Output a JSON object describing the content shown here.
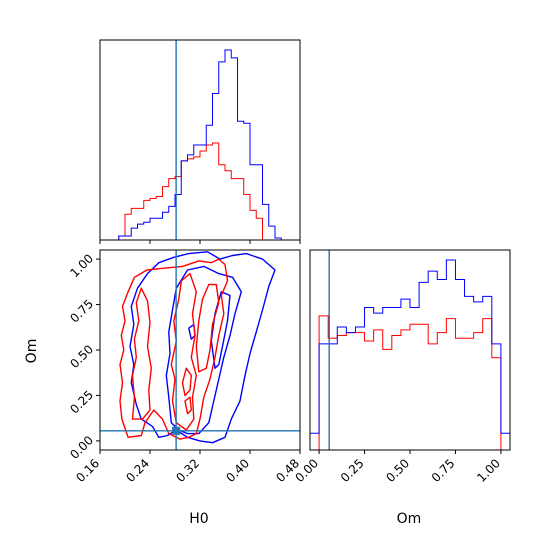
{
  "chart_data": {
    "type": "corner",
    "parameters": [
      "H0",
      "Om"
    ],
    "truths": {
      "H0": 0.2818,
      "Om": 0.0556
    },
    "truth_color": "#1f77b4",
    "series_colors": {
      "red": "#ff0000",
      "blue": "#0000ff"
    },
    "axes": {
      "H0": {
        "xlabel": "H0",
        "range": [
          0.16,
          0.48
        ],
        "ticks": [
          0.16,
          0.24,
          0.32,
          0.4,
          0.48
        ],
        "tick_labels": [
          "0.16",
          "0.24",
          "0.32",
          "0.40",
          "0.48"
        ]
      },
      "Om": {
        "xlabel": "Om",
        "ylabel": "Om",
        "range": [
          -0.05,
          1.05
        ],
        "ticks": [
          0.0,
          0.25,
          0.5,
          0.75,
          1.0
        ],
        "tick_labels": [
          "0.00",
          "0.25",
          "0.50",
          "0.75",
          "1.00"
        ]
      }
    },
    "hist_H0": {
      "bin_edges": [
        0.16,
        0.17,
        0.18,
        0.19,
        0.2,
        0.21,
        0.22,
        0.23,
        0.24,
        0.25,
        0.26,
        0.27,
        0.28,
        0.29,
        0.3,
        0.31,
        0.32,
        0.33,
        0.34,
        0.35,
        0.36,
        0.37,
        0.38,
        0.39,
        0.4,
        0.41,
        0.42,
        0.43,
        0.44,
        0.45,
        0.46,
        0.47,
        0.48
      ],
      "red": [
        0,
        0,
        0,
        0.02,
        0.13,
        0.16,
        0.16,
        0.2,
        0.21,
        0.22,
        0.27,
        0.31,
        0.32,
        0.4,
        0.41,
        0.42,
        0.45,
        0.48,
        0.49,
        0.38,
        0.35,
        0.31,
        0.31,
        0.23,
        0.15,
        0.11,
        0,
        0,
        0,
        0,
        0,
        0
      ],
      "blue": [
        0,
        0,
        0,
        0.02,
        0.02,
        0.06,
        0.08,
        0.09,
        0.11,
        0.11,
        0.14,
        0.17,
        0.23,
        0.4,
        0.43,
        0.48,
        0.48,
        0.58,
        0.74,
        0.9,
        0.96,
        0.92,
        0.6,
        0.59,
        0.38,
        0.38,
        0.18,
        0.07,
        0.01,
        0,
        0,
        0
      ]
    },
    "hist_Om": {
      "bin_edges": [
        -0.05,
        0,
        0.05,
        0.1,
        0.15,
        0.2,
        0.25,
        0.3,
        0.35,
        0.4,
        0.45,
        0.5,
        0.55,
        0.6,
        0.65,
        0.7,
        0.75,
        0.8,
        0.85,
        0.9,
        0.95,
        1.0,
        1.05
      ],
      "red": [
        0,
        0.48,
        0.4,
        0.41,
        0.42,
        0.42,
        0.39,
        0.43,
        0.36,
        0.41,
        0.43,
        0.45,
        0.45,
        0.38,
        0.42,
        0.47,
        0.4,
        0.4,
        0.42,
        0.47,
        0.33,
        0
      ],
      "blue": [
        0.06,
        0.38,
        0.38,
        0.44,
        0.42,
        0.44,
        0.51,
        0.49,
        0.51,
        0.51,
        0.54,
        0.51,
        0.6,
        0.64,
        0.61,
        0.68,
        0.61,
        0.55,
        0.53,
        0.55,
        0.38,
        0.06
      ]
    },
    "contours": {
      "red": [
        [
          [
            0.205,
            0.02
          ],
          [
            0.195,
            0.12
          ],
          [
            0.192,
            0.22
          ],
          [
            0.196,
            0.32
          ],
          [
            0.192,
            0.42
          ],
          [
            0.198,
            0.5
          ],
          [
            0.194,
            0.58
          ],
          [
            0.2,
            0.66
          ],
          [
            0.196,
            0.74
          ],
          [
            0.205,
            0.82
          ],
          [
            0.215,
            0.9
          ],
          [
            0.235,
            0.94
          ],
          [
            0.262,
            0.95
          ],
          [
            0.292,
            0.96
          ],
          [
            0.318,
            0.99
          ],
          [
            0.338,
            0.98
          ],
          [
            0.35,
            1.0
          ],
          [
            0.36,
            0.97
          ],
          [
            0.364,
            0.88
          ],
          [
            0.354,
            0.8
          ],
          [
            0.358,
            0.7
          ],
          [
            0.35,
            0.58
          ],
          [
            0.344,
            0.46
          ],
          [
            0.336,
            0.34
          ],
          [
            0.326,
            0.24
          ],
          [
            0.32,
            0.12
          ],
          [
            0.314,
            0.04
          ],
          [
            0.302,
            0.02
          ],
          [
            0.288,
            0.01
          ],
          [
            0.27,
            0.04
          ],
          [
            0.26,
            0.12
          ],
          [
            0.246,
            0.17
          ],
          [
            0.232,
            0.1
          ],
          [
            0.226,
            0.03
          ],
          [
            0.205,
            0.02
          ]
        ],
        [
          [
            0.212,
            0.12
          ],
          [
            0.215,
            0.24
          ],
          [
            0.212,
            0.36
          ],
          [
            0.218,
            0.46
          ],
          [
            0.215,
            0.56
          ],
          [
            0.222,
            0.66
          ],
          [
            0.218,
            0.76
          ],
          [
            0.226,
            0.84
          ],
          [
            0.236,
            0.77
          ],
          [
            0.24,
            0.65
          ],
          [
            0.236,
            0.52
          ],
          [
            0.242,
            0.4
          ],
          [
            0.238,
            0.28
          ],
          [
            0.24,
            0.17
          ],
          [
            0.228,
            0.12
          ],
          [
            0.212,
            0.12
          ]
        ],
        [
          [
            0.282,
            0.1
          ],
          [
            0.276,
            0.22
          ],
          [
            0.28,
            0.34
          ],
          [
            0.274,
            0.42
          ],
          [
            0.282,
            0.55
          ],
          [
            0.278,
            0.66
          ],
          [
            0.286,
            0.78
          ],
          [
            0.29,
            0.88
          ],
          [
            0.304,
            0.92
          ],
          [
            0.314,
            0.82
          ],
          [
            0.308,
            0.7
          ],
          [
            0.312,
            0.58
          ],
          [
            0.306,
            0.46
          ],
          [
            0.314,
            0.36
          ],
          [
            0.308,
            0.24
          ],
          [
            0.31,
            0.12
          ],
          [
            0.298,
            0.06
          ],
          [
            0.282,
            0.1
          ]
        ],
        [
          [
            0.318,
            0.38
          ],
          [
            0.314,
            0.52
          ],
          [
            0.318,
            0.66
          ],
          [
            0.324,
            0.78
          ],
          [
            0.334,
            0.86
          ],
          [
            0.346,
            0.86
          ],
          [
            0.35,
            0.76
          ],
          [
            0.34,
            0.64
          ],
          [
            0.336,
            0.5
          ],
          [
            0.33,
            0.4
          ],
          [
            0.318,
            0.38
          ]
        ],
        [
          [
            0.296,
            0.25
          ],
          [
            0.292,
            0.32
          ],
          [
            0.298,
            0.4
          ],
          [
            0.306,
            0.36
          ],
          [
            0.304,
            0.28
          ],
          [
            0.296,
            0.25
          ]
        ],
        [
          [
            0.3,
            0.15
          ],
          [
            0.296,
            0.22
          ],
          [
            0.304,
            0.24
          ],
          [
            0.306,
            0.17
          ],
          [
            0.3,
            0.15
          ]
        ]
      ],
      "blue": [
        [
          [
            0.254,
            0.02
          ],
          [
            0.244,
            0.08
          ],
          [
            0.226,
            0.12
          ],
          [
            0.218,
            0.2
          ],
          [
            0.21,
            0.32
          ],
          [
            0.214,
            0.42
          ],
          [
            0.208,
            0.52
          ],
          [
            0.214,
            0.64
          ],
          [
            0.21,
            0.74
          ],
          [
            0.22,
            0.84
          ],
          [
            0.236,
            0.92
          ],
          [
            0.254,
            0.98
          ],
          [
            0.278,
            1.01
          ],
          [
            0.302,
            1.03
          ],
          [
            0.332,
            1.04
          ],
          [
            0.352,
            1.0
          ],
          [
            0.372,
            1.02
          ],
          [
            0.394,
            1.03
          ],
          [
            0.42,
            1.0
          ],
          [
            0.44,
            0.94
          ],
          [
            0.43,
            0.85
          ],
          [
            0.42,
            0.72
          ],
          [
            0.41,
            0.6
          ],
          [
            0.4,
            0.48
          ],
          [
            0.392,
            0.36
          ],
          [
            0.384,
            0.22
          ],
          [
            0.37,
            0.12
          ],
          [
            0.36,
            0.02
          ],
          [
            0.34,
            -0.01
          ],
          [
            0.32,
            0.0
          ],
          [
            0.3,
            0.02
          ],
          [
            0.282,
            0.06
          ],
          [
            0.268,
            0.03
          ],
          [
            0.254,
            0.02
          ]
        ],
        [
          [
            0.274,
            0.1
          ],
          [
            0.27,
            0.24
          ],
          [
            0.266,
            0.36
          ],
          [
            0.272,
            0.48
          ],
          [
            0.27,
            0.6
          ],
          [
            0.276,
            0.72
          ],
          [
            0.282,
            0.84
          ],
          [
            0.3,
            0.94
          ],
          [
            0.326,
            0.96
          ],
          [
            0.35,
            0.92
          ],
          [
            0.372,
            0.9
          ],
          [
            0.386,
            0.82
          ],
          [
            0.376,
            0.7
          ],
          [
            0.368,
            0.58
          ],
          [
            0.358,
            0.46
          ],
          [
            0.35,
            0.34
          ],
          [
            0.342,
            0.22
          ],
          [
            0.334,
            0.1
          ],
          [
            0.318,
            0.04
          ],
          [
            0.3,
            0.04
          ],
          [
            0.286,
            0.06
          ],
          [
            0.274,
            0.1
          ]
        ],
        [
          [
            0.344,
            0.4
          ],
          [
            0.338,
            0.55
          ],
          [
            0.344,
            0.7
          ],
          [
            0.354,
            0.82
          ],
          [
            0.368,
            0.8
          ],
          [
            0.364,
            0.66
          ],
          [
            0.356,
            0.52
          ],
          [
            0.35,
            0.42
          ],
          [
            0.344,
            0.4
          ]
        ],
        [
          [
            0.306,
            0.56
          ],
          [
            0.302,
            0.62
          ],
          [
            0.31,
            0.64
          ],
          [
            0.312,
            0.58
          ],
          [
            0.306,
            0.56
          ]
        ]
      ]
    }
  }
}
